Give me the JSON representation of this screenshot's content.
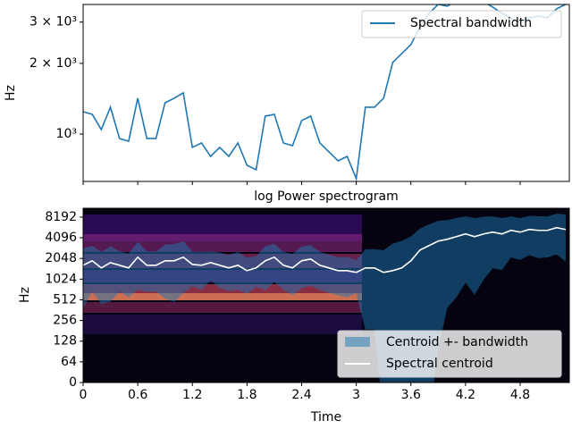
{
  "chart_data": [
    {
      "type": "line",
      "yscale": "log",
      "ylabel": "Hz",
      "x": [
        0,
        0.1,
        0.2,
        0.3,
        0.4,
        0.5,
        0.6,
        0.7,
        0.8,
        0.9,
        1.0,
        1.1,
        1.2,
        1.3,
        1.4,
        1.5,
        1.6,
        1.7,
        1.8,
        1.9,
        2.0,
        2.1,
        2.2,
        2.3,
        2.4,
        2.5,
        2.6,
        2.7,
        2.8,
        2.9,
        3.0,
        3.1,
        3.2,
        3.3,
        3.4,
        3.5,
        3.6,
        3.7,
        3.8,
        3.9,
        4.0,
        4.1,
        4.2,
        4.3,
        4.4,
        4.5,
        4.6,
        4.7,
        4.8,
        4.9,
        5.0,
        5.1,
        5.2,
        5.3
      ],
      "xlim": [
        0,
        5.34
      ],
      "xticks": [
        0,
        0.6,
        1.2,
        1.8,
        2.4,
        3,
        3.6,
        4.2,
        4.8
      ],
      "ylim": [
        628,
        3565
      ],
      "yticks": [
        {
          "value": 1000,
          "label": "10³"
        },
        {
          "value": 2000,
          "label": "2 × 10³"
        },
        {
          "value": 3000,
          "label": "3 × 10³"
        }
      ],
      "legend": "upper right",
      "series": [
        {
          "name": "Spectral bandwidth",
          "color": "#1f77b4",
          "values": [
            1245,
            1213,
            1045,
            1301,
            957,
            932,
            1420,
            957,
            957,
            1359,
            1420,
            1497,
            877,
            916,
            803,
            877,
            803,
            916,
            736,
            704,
            1192,
            1213,
            916,
            892,
            1141,
            1192,
            916,
            839,
            769,
            803,
            645,
            1301,
            1301,
            1420,
            2018,
            2203,
            2404,
            2865,
            3268,
            3568,
            3506,
            3700,
            3750,
            3650,
            3650,
            3475,
            3268,
            3128,
            2993,
            3128,
            3184,
            3128,
            3414,
            3568
          ]
        }
      ]
    },
    {
      "type": "spectrogram",
      "title": "log Power spectrogram",
      "xlabel": "Time",
      "ylabel": "Hz",
      "yscale": "symlog",
      "linthresh": 64,
      "x": [
        0,
        0.1,
        0.2,
        0.3,
        0.4,
        0.5,
        0.6,
        0.7,
        0.8,
        0.9,
        1.0,
        1.1,
        1.2,
        1.3,
        1.4,
        1.5,
        1.6,
        1.7,
        1.8,
        1.9,
        2.0,
        2.1,
        2.2,
        2.3,
        2.4,
        2.5,
        2.6,
        2.7,
        2.8,
        2.9,
        3.0,
        3.1,
        3.2,
        3.3,
        3.4,
        3.5,
        3.6,
        3.7,
        3.8,
        3.9,
        4.0,
        4.1,
        4.2,
        4.3,
        4.4,
        4.5,
        4.6,
        4.7,
        4.8,
        4.9,
        5.0,
        5.1,
        5.2,
        5.3
      ],
      "xlim": [
        0,
        5.34
      ],
      "xticks": [
        0,
        0.6,
        1.2,
        1.8,
        2.4,
        3,
        3.6,
        4.2,
        4.8
      ],
      "ylim": [
        0,
        11025
      ],
      "yticks": [
        0,
        64,
        128,
        256,
        512,
        1024,
        2048,
        4096,
        8192
      ],
      "legend": "lower right",
      "series": [
        {
          "name": "Centroid +- bandwidth",
          "color": "#1f77b4",
          "alpha": 0.5
        },
        {
          "name": "Spectral centroid",
          "color": "#ffffff",
          "values": [
            1630,
            1894,
            1490,
            1780,
            1630,
            1490,
            2137,
            1630,
            1630,
            1894,
            1894,
            2137,
            1680,
            1630,
            1780,
            1630,
            1490,
            1630,
            1362,
            1490,
            1894,
            2137,
            1630,
            1490,
            1894,
            2010,
            1630,
            1490,
            1362,
            1362,
            1282,
            1490,
            1490,
            1282,
            1362,
            1490,
            1894,
            2716,
            3156,
            3665,
            3900,
            4256,
            4660,
            4256,
            4660,
            4950,
            4660,
            5254,
            4950,
            5414,
            5254,
            5254,
            5750,
            5414
          ]
        }
      ]
    }
  ]
}
